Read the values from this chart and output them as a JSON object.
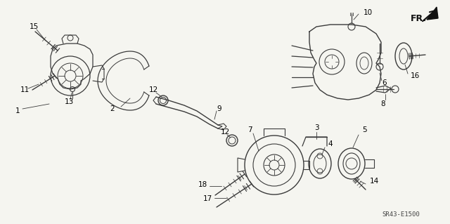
{
  "background_color": "#f5f5f0",
  "diagram_code": "SR43-E1500",
  "fr_label": "FR.",
  "fig_width": 6.4,
  "fig_height": 3.19,
  "dpi": 100,
  "line_color": "#3a3a3a",
  "label_color": "#000000",
  "label_fontsize": 7.5,
  "diagram_ref_fontsize": 6.5
}
